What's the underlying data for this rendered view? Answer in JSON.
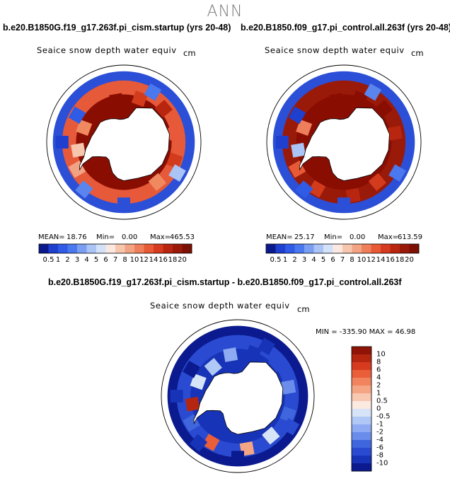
{
  "page": {
    "title": "ANN",
    "panel_left_title": "b.e20.B1850G.f19_g17.263f.pi_cism.startup (yrs 20-48)",
    "panel_right_title": "b.e20.B1850.f09_g17.pi_control.all.263f (yrs 20-48)",
    "diff_title": "b.e20.B1850G.f19_g17.263f.pi_cism.startup - b.e20.B1850.f09_g17.pi_control.all.263f"
  },
  "maps": {
    "left": {
      "variable": "Seaice snow depth water equiv",
      "units": "cm",
      "mean_label": "MEAN=",
      "mean": "18.76",
      "min_label": "Min=",
      "min": "0.00",
      "max_label": "Max=",
      "max": "465.53"
    },
    "right": {
      "variable": "Seaice snow depth water equiv",
      "units": "cm",
      "mean_label": "MEAN=",
      "mean": "25.17",
      "min_label": "Min=",
      "min": "0.00",
      "max_label": "Max=",
      "max": "613.59"
    },
    "diff": {
      "variable": "Seaice snow depth water equiv",
      "units": "cm",
      "minmax_text": "MIN = -335.90 MAX =   46.98"
    }
  },
  "colorbars": {
    "main_levels": [
      "0.5",
      "1",
      "2",
      "3",
      "4",
      "5",
      "6",
      "7",
      "8",
      "10",
      "12",
      "14",
      "16",
      "18",
      "20"
    ],
    "main_colors": [
      "#0a1a8c",
      "#1f3fcf",
      "#2f5be6",
      "#4a78ee",
      "#7a9ff2",
      "#a9c4f5",
      "#d3e2f8",
      "#fbe9e1",
      "#f6c6ad",
      "#f2a383",
      "#ee7f5a",
      "#e85a36",
      "#d63b1f",
      "#b9260f",
      "#9a1a0a",
      "#7d1004"
    ],
    "diff_levels": [
      "10",
      "8",
      "6",
      "4",
      "2",
      "1",
      "0.5",
      "0",
      "-0.5",
      "-1",
      "-2",
      "-4",
      "-6",
      "-8",
      "-10"
    ],
    "diff_colors": [
      "#8f1407",
      "#b4260f",
      "#d63b1f",
      "#ea5e3a",
      "#f1835f",
      "#f5a584",
      "#f8c8b0",
      "#fce9df",
      "#d7e4f8",
      "#b0c8f5",
      "#8eaaf2",
      "#6a8ceb",
      "#3f66dd",
      "#2a4bd1",
      "#1733b7",
      "#0b1a8e"
    ]
  },
  "map_fields": {
    "left": {
      "ice_land_color": "#8a0d02",
      "outer_ring_color": "#e65a3a",
      "edge_color": "#2b4fd6",
      "cells": [
        {
          "lon": 10,
          "lat": -62,
          "color": "#e8583a"
        },
        {
          "lon": 40,
          "lat": -63,
          "color": "#f0895f"
        },
        {
          "lon": 70,
          "lat": -62,
          "color": "#d33b1d"
        },
        {
          "lon": 100,
          "lat": -63,
          "color": "#e8583a"
        },
        {
          "lon": 130,
          "lat": -63,
          "color": "#b9260f"
        },
        {
          "lon": 160,
          "lat": -66,
          "color": "#d33b1d"
        },
        {
          "lon": -170,
          "lat": -68,
          "color": "#8a0d02"
        },
        {
          "lon": -140,
          "lat": -70,
          "color": "#8a0d02"
        },
        {
          "lon": -110,
          "lat": -68,
          "color": "#f0895f"
        },
        {
          "lon": -80,
          "lat": -66,
          "color": "#f6c6ad"
        },
        {
          "lon": -60,
          "lat": -62,
          "color": "#f2a383"
        },
        {
          "lon": -30,
          "lat": -62,
          "color": "#e8583a"
        },
        {
          "lon": 0,
          "lat": -58,
          "color": "#2b4fd6"
        },
        {
          "lon": -40,
          "lat": -58,
          "color": "#5a84ee"
        },
        {
          "lon": 60,
          "lat": -58,
          "color": "#a9c4f5"
        },
        {
          "lon": 150,
          "lat": -60,
          "color": "#4a78ee"
        },
        {
          "lon": -120,
          "lat": -62,
          "color": "#2f5be6"
        },
        {
          "lon": -90,
          "lat": -58,
          "color": "#1f3fcf"
        }
      ]
    },
    "right": {
      "ice_land_color": "#8a0d02",
      "outer_ring_color": "#9a1a0a",
      "edge_color": "#2b4fd6",
      "cells": [
        {
          "lon": 10,
          "lat": -62,
          "color": "#b9260f"
        },
        {
          "lon": 40,
          "lat": -63,
          "color": "#d33b1d"
        },
        {
          "lon": 70,
          "lat": -62,
          "color": "#9a1a0a"
        },
        {
          "lon": 100,
          "lat": -63,
          "color": "#b9260f"
        },
        {
          "lon": 130,
          "lat": -63,
          "color": "#8a0d02"
        },
        {
          "lon": 160,
          "lat": -66,
          "color": "#8a0d02"
        },
        {
          "lon": -170,
          "lat": -68,
          "color": "#8a0d02"
        },
        {
          "lon": -140,
          "lat": -70,
          "color": "#8a0d02"
        },
        {
          "lon": -110,
          "lat": -68,
          "color": "#ee7f5a"
        },
        {
          "lon": -80,
          "lat": -66,
          "color": "#a9c4f5"
        },
        {
          "lon": -60,
          "lat": -62,
          "color": "#e85a36"
        },
        {
          "lon": -30,
          "lat": -62,
          "color": "#d33b1d"
        },
        {
          "lon": 0,
          "lat": -58,
          "color": "#2b4fd6"
        },
        {
          "lon": -40,
          "lat": -58,
          "color": "#2f5be6"
        },
        {
          "lon": 60,
          "lat": -58,
          "color": "#4a78ee"
        },
        {
          "lon": 150,
          "lat": -60,
          "color": "#5a84ee"
        },
        {
          "lon": -120,
          "lat": -62,
          "color": "#1f3fcf"
        },
        {
          "lon": -90,
          "lat": -58,
          "color": "#1f3fcf"
        }
      ]
    },
    "diff": {
      "ice_land_color": "#1733b7",
      "outer_ring_color": "#2a4bd1",
      "edge_color": "#0b1a8e",
      "cells": [
        {
          "lon": 10,
          "lat": -62,
          "color": "#f5a584"
        },
        {
          "lon": 40,
          "lat": -63,
          "color": "#d7e4f8"
        },
        {
          "lon": 70,
          "lat": -62,
          "color": "#3f66dd"
        },
        {
          "lon": 100,
          "lat": -63,
          "color": "#6a8ceb"
        },
        {
          "lon": 130,
          "lat": -63,
          "color": "#2a4bd1"
        },
        {
          "lon": 160,
          "lat": -66,
          "color": "#1733b7"
        },
        {
          "lon": -170,
          "lat": -68,
          "color": "#8eaaf2"
        },
        {
          "lon": -140,
          "lat": -70,
          "color": "#b0c8f5"
        },
        {
          "lon": -110,
          "lat": -68,
          "color": "#d7e4f8"
        },
        {
          "lon": -80,
          "lat": -66,
          "color": "#b4260f"
        },
        {
          "lon": -60,
          "lat": -62,
          "color": "#3f66dd"
        },
        {
          "lon": -30,
          "lat": -62,
          "color": "#ea5e3a"
        },
        {
          "lon": 0,
          "lat": -58,
          "color": "#0b1a8e"
        },
        {
          "lon": -40,
          "lat": -58,
          "color": "#1733b7"
        },
        {
          "lon": 60,
          "lat": -58,
          "color": "#2a4bd1"
        },
        {
          "lon": 150,
          "lat": -60,
          "color": "#1733b7"
        },
        {
          "lon": -120,
          "lat": -62,
          "color": "#0b1a8e"
        },
        {
          "lon": -90,
          "lat": -58,
          "color": "#1733b7"
        }
      ]
    }
  }
}
